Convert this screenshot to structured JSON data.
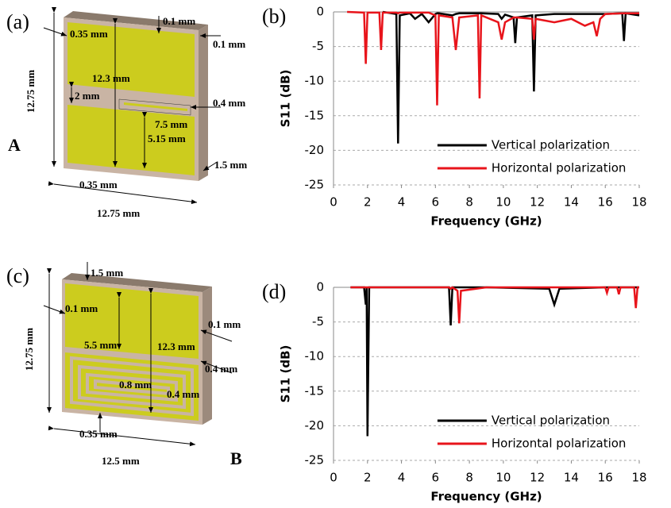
{
  "diagrams": [
    {
      "labels": [
        "(a)",
        "0.1 mm",
        "0.35 mm",
        "0.1 mm",
        "12.3 mm",
        "12.75 mm",
        "2 mm",
        "0.4 mm",
        "7.5 mm",
        "5.15 mm",
        "1.5 mm",
        "0.35 mm",
        "12.75 mm",
        "A"
      ]
    },
    {
      "labels": [
        "(c)",
        "1.5 mm",
        "0.1 mm",
        "0.1 mm",
        "5.5 mm",
        "12.3 mm",
        "12.75 mm",
        "0.4 mm",
        "0.8 mm",
        "0.4 mm",
        "0.35 mm",
        "12.5 mm",
        "B"
      ]
    }
  ],
  "chart_data": [
    {
      "type": "line",
      "panel": "(b)",
      "xlabel": "Frequency (GHz)",
      "ylabel": "S11 (dB)",
      "x": [
        0.8,
        1.8,
        1.9,
        2.0,
        2.7,
        2.8,
        2.9,
        3.7,
        3.8,
        3.9,
        4.5,
        4.8,
        5.2,
        5.6,
        6.0,
        6.1,
        6.2,
        7.0,
        7.2,
        7.4,
        8.5,
        8.6,
        8.7,
        9.7,
        9.9,
        10.1,
        10.6,
        10.7,
        10.8,
        11.7,
        11.8,
        11.9,
        13.0,
        14.0,
        14.8,
        15.3,
        15.5,
        15.7,
        16.0,
        17.0,
        17.1,
        17.2,
        18.0
      ],
      "series": [
        {
          "name": "Vertical polarization",
          "color": "#000000",
          "values": [
            null,
            null,
            null,
            null,
            null,
            null,
            0,
            -0.3,
            -19,
            -0.5,
            -0.2,
            -1,
            -0.3,
            -1.5,
            -0.3,
            -0.2,
            -0.2,
            -0.5,
            -0.3,
            -0.2,
            -0.2,
            -0.2,
            -0.2,
            -0.3,
            -1,
            -0.4,
            -0.8,
            -4.5,
            -0.8,
            -0.5,
            -11.5,
            -0.5,
            -0.3,
            -0.3,
            -0.3,
            -0.3,
            -0.3,
            -0.3,
            -0.3,
            -0.2,
            -4.2,
            -0.2,
            -0.5
          ]
        },
        {
          "name": "Horizontal polarization",
          "color": "#e8141b",
          "values": [
            0,
            -0.1,
            -7.5,
            -0.1,
            -0.1,
            -5.5,
            -0.1,
            -0.1,
            -0.2,
            -0.1,
            -0.1,
            -0.1,
            -0.1,
            -0.1,
            -0.5,
            -13.5,
            -0.5,
            -0.8,
            -5.5,
            -0.8,
            -0.5,
            -12.5,
            -0.5,
            -1.5,
            -4,
            -1.5,
            -0.8,
            -0.8,
            -0.8,
            -1,
            -4,
            -1,
            -1.5,
            -1,
            -2,
            -1.5,
            -3.5,
            -1,
            -0.3,
            -0.2,
            -0.2,
            -0.2,
            -0.2
          ]
        }
      ],
      "xlim": [
        0,
        18
      ],
      "xticks": [
        0,
        2,
        4,
        6,
        8,
        10,
        12,
        14,
        16,
        18
      ],
      "ylim": [
        -25,
        0
      ],
      "yticks": [
        0,
        -5,
        -10,
        -15,
        -20,
        -25
      ],
      "grid": true,
      "legend": "lower-right"
    },
    {
      "type": "line",
      "panel": "(d)",
      "xlabel": "Frequency (GHz)",
      "ylabel": "S11 (dB)",
      "x": [
        1.0,
        1.8,
        1.9,
        1.95,
        2.0,
        2.1,
        6.8,
        6.9,
        7.0,
        7.3,
        7.4,
        7.5,
        9.0,
        12.7,
        13.0,
        13.3,
        16.0,
        16.1,
        16.2,
        16.7,
        16.8,
        16.9,
        17.7,
        17.8,
        17.9,
        18.0
      ],
      "series": [
        {
          "name": "Vertical polarization",
          "color": "#000000",
          "values": [
            0,
            0,
            -2.5,
            0,
            -21.5,
            0,
            0,
            -5.5,
            0,
            0,
            0,
            0,
            0,
            -0.2,
            -2.5,
            -0.2,
            0,
            0,
            0,
            0,
            0,
            0,
            0,
            0,
            0,
            0
          ]
        },
        {
          "name": "Horizontal polarization",
          "color": "#e8141b",
          "values": [
            0,
            0,
            0,
            0,
            0,
            0,
            0,
            -0.2,
            0,
            -0.5,
            -5.2,
            -0.5,
            0,
            0,
            0,
            0,
            0,
            -0.8,
            0,
            0,
            -1,
            0,
            0,
            -3,
            0,
            0
          ]
        }
      ],
      "xlim": [
        0,
        18
      ],
      "xticks": [
        0,
        2,
        4,
        6,
        8,
        10,
        12,
        14,
        16,
        18
      ],
      "ylim": [
        -25,
        0
      ],
      "yticks": [
        0,
        -5,
        -10,
        -15,
        -20,
        -25
      ],
      "grid": true,
      "legend": "lower-right"
    }
  ]
}
